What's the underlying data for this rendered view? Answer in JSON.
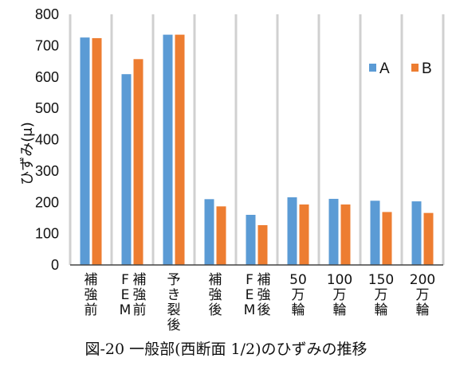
{
  "chart_data": {
    "type": "bar",
    "categories": [
      "補強前",
      "FEM補強前",
      "予き裂後",
      "補強後",
      "FEM補強後",
      "50万輪",
      "100万輪",
      "150万輪",
      "200万輪"
    ],
    "category_lines": [
      [
        "補",
        "強",
        "前"
      ],
      [
        "F E M",
        "補 強 前"
      ],
      [
        "予",
        "き",
        "裂",
        "後"
      ],
      [
        "補",
        "強",
        "後"
      ],
      [
        "F E M",
        "補 強 後"
      ],
      [
        "50",
        "万",
        "輪"
      ],
      [
        "100",
        "万",
        "輪"
      ],
      [
        "150",
        "万",
        "輪"
      ],
      [
        "200",
        "万",
        "輪"
      ]
    ],
    "series": [
      {
        "name": "A",
        "color": "#5B9BD5",
        "values": [
          726,
          609,
          735,
          210,
          160,
          216,
          211,
          205,
          203
        ]
      },
      {
        "name": "B",
        "color": "#ED7D31",
        "values": [
          724,
          657,
          735,
          187,
          127,
          193,
          193,
          169,
          166
        ]
      }
    ],
    "ylabel": "ひずみ(μ)",
    "ylim": [
      0,
      800
    ],
    "yticks": [
      0,
      100,
      200,
      300,
      400,
      500,
      600,
      700,
      800
    ],
    "grid": "vertical",
    "legend": "right"
  },
  "caption": "図-20 一般部(西断面 1/2)のひずみの推移"
}
